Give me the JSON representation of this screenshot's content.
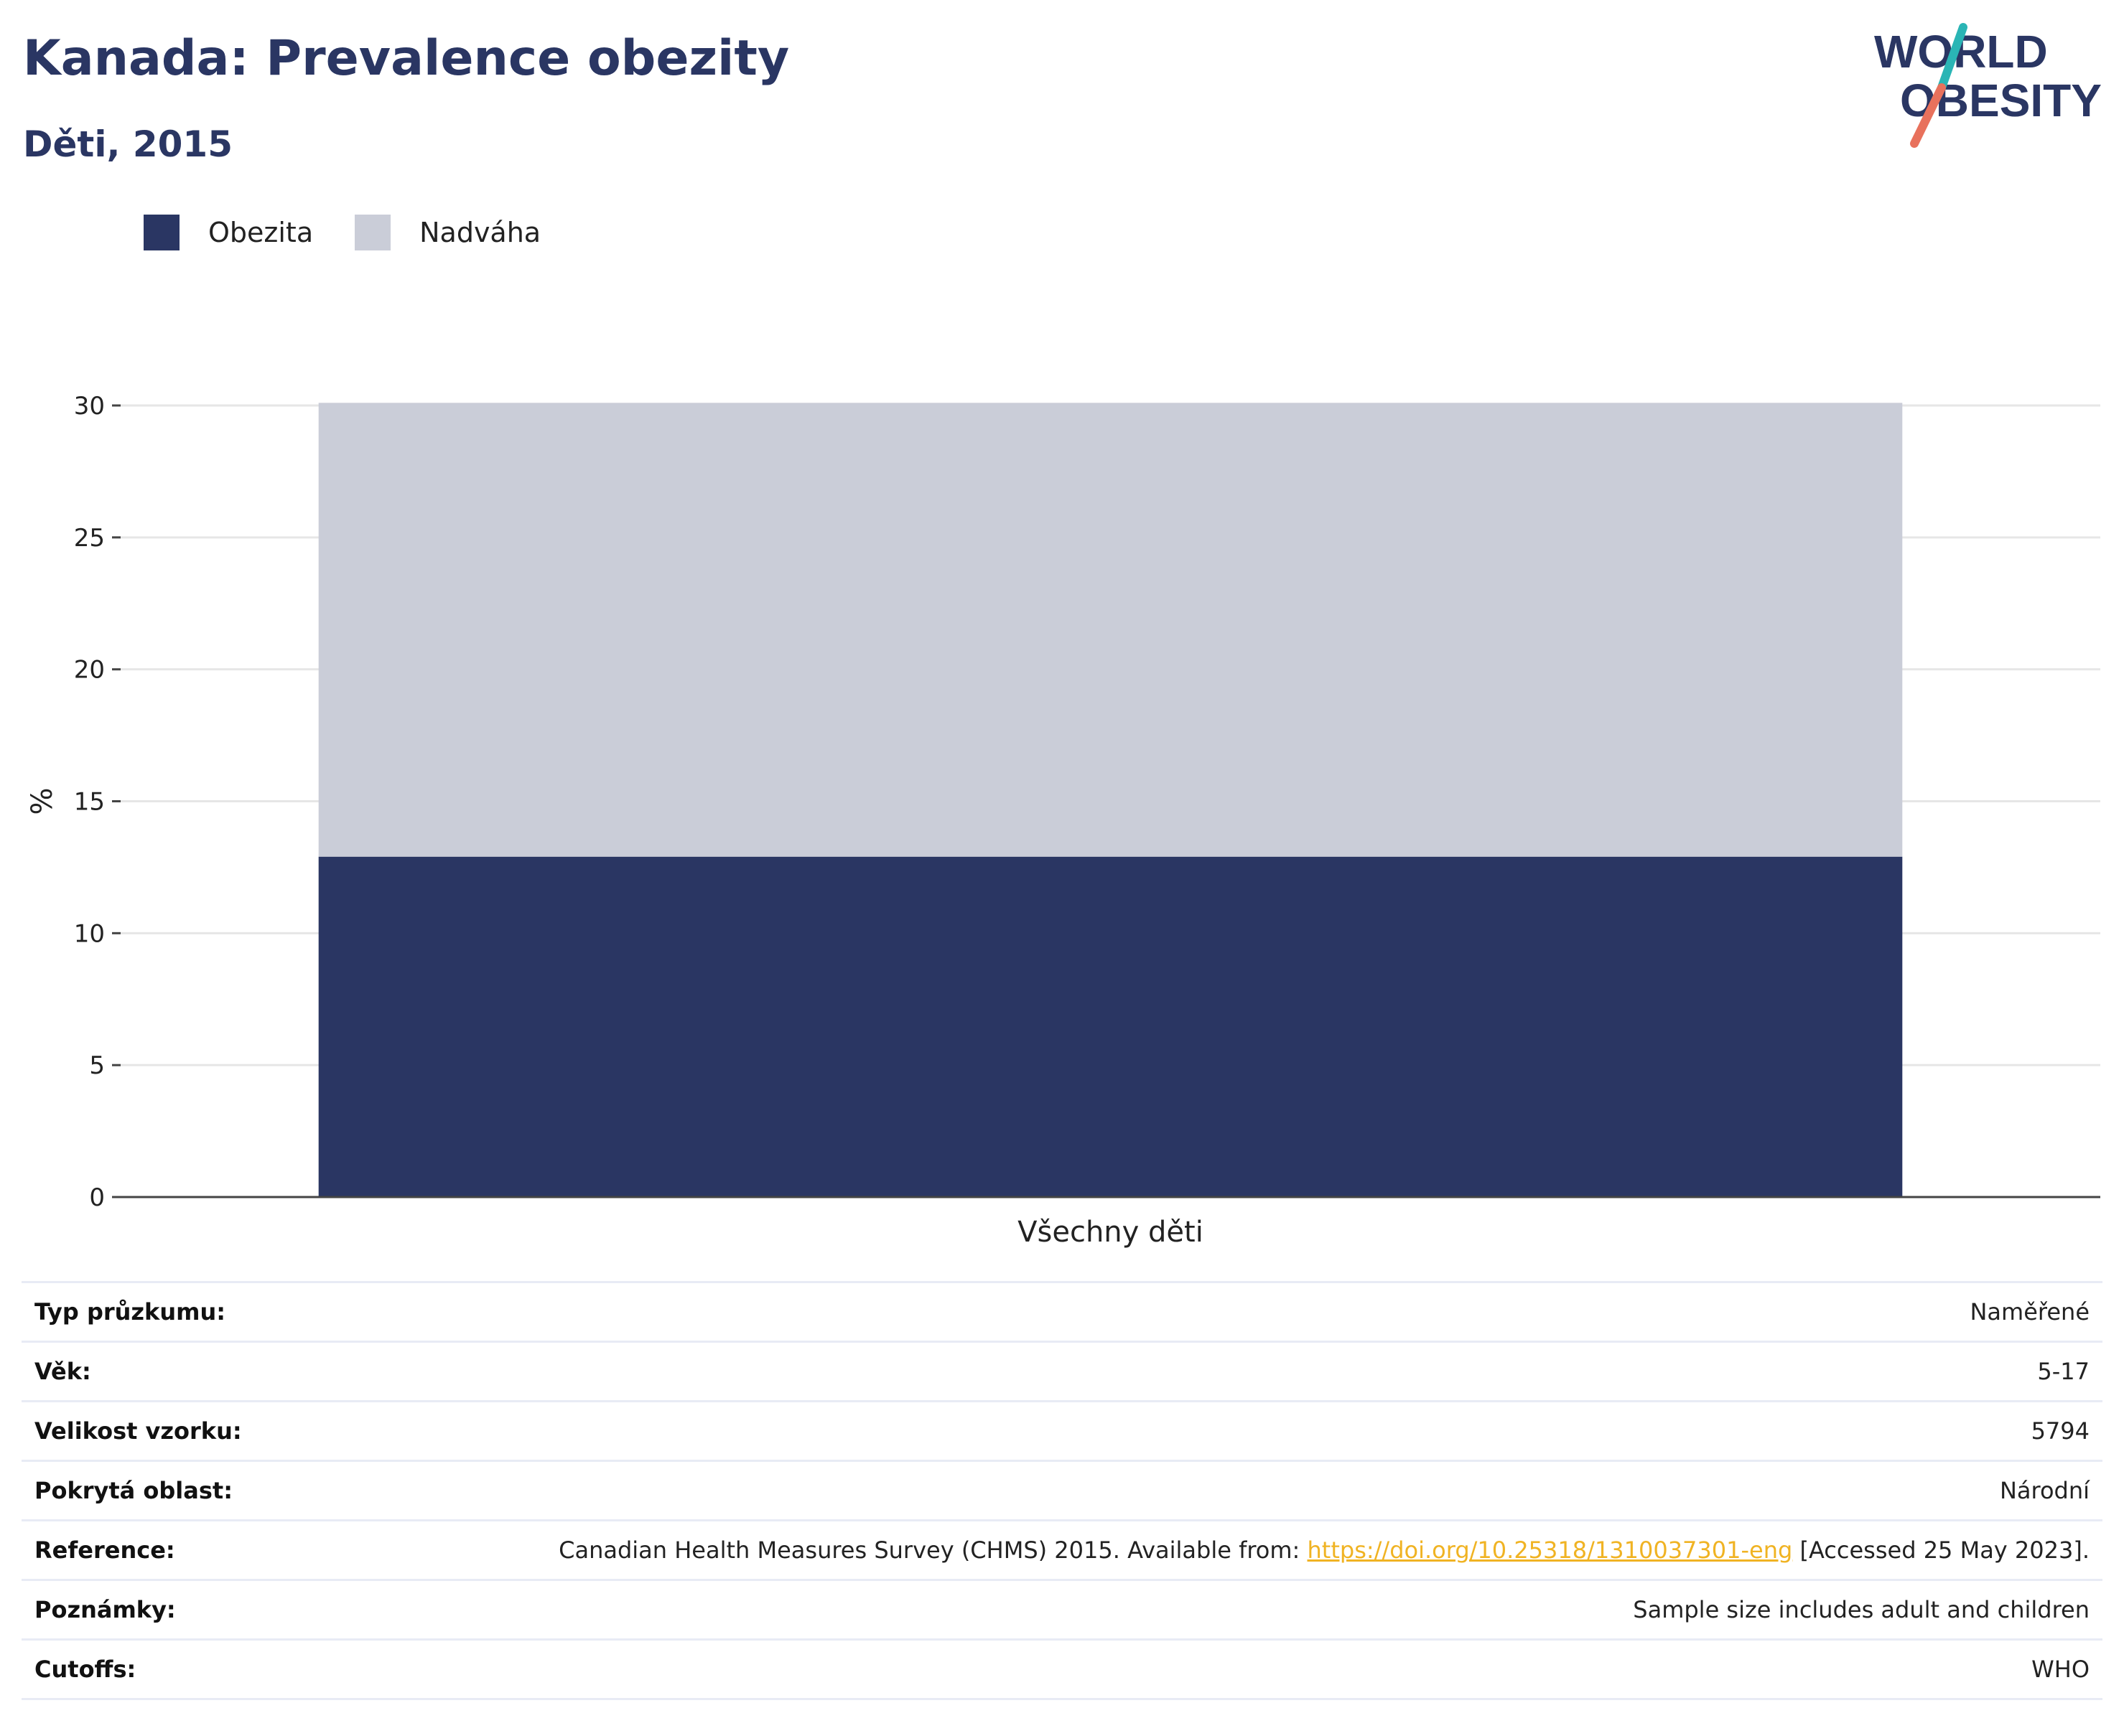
{
  "header": {
    "title": "Kanada: Prevalence obezity",
    "subtitle": "Děti, 2015"
  },
  "logo": {
    "line1": "WORLD",
    "line2": "OBESITY",
    "colors": {
      "text": "#2a3663",
      "slash_top": "#2ab5b5",
      "slash_bottom": "#e8715c"
    }
  },
  "colors": {
    "obezita": "#2a3663",
    "nadvaha": "#cacdd8",
    "axis": "#444444",
    "grid": "#e6e6e6",
    "link": "#f0b323"
  },
  "chart_data": {
    "type": "bar",
    "stacked": true,
    "categories": [
      "Všechny děti"
    ],
    "series": [
      {
        "name": "Obezita",
        "values": [
          12.9
        ],
        "color": "#2a3663"
      },
      {
        "name": "Nadváha",
        "values": [
          17.2
        ],
        "color": "#cacdd8"
      }
    ],
    "ylabel": "%",
    "xlabel": "",
    "ylim": [
      0,
      30
    ],
    "yticks": [
      0,
      5,
      10,
      15,
      20,
      25,
      30
    ],
    "grid": true,
    "legend_position": "top-left"
  },
  "table": {
    "rows": [
      {
        "key": "Typ průzkumu:",
        "value": "Naměřené"
      },
      {
        "key": "Věk:",
        "value": "5-17"
      },
      {
        "key": "Velikost vzorku:",
        "value": "5794"
      },
      {
        "key": "Pokrytá oblast:",
        "value": "Národní"
      },
      {
        "key": "Reference:",
        "value_prefix": "Canadian Health Measures Survey (CHMS) 2015. Available from: ",
        "link": "https://doi.org/10.25318/1310037301-eng",
        "value_suffix": " [Accessed 25 May 2023]."
      },
      {
        "key": "Poznámky:",
        "value": "Sample size includes adult and children"
      },
      {
        "key": "Cutoffs:",
        "value": "WHO"
      }
    ]
  }
}
